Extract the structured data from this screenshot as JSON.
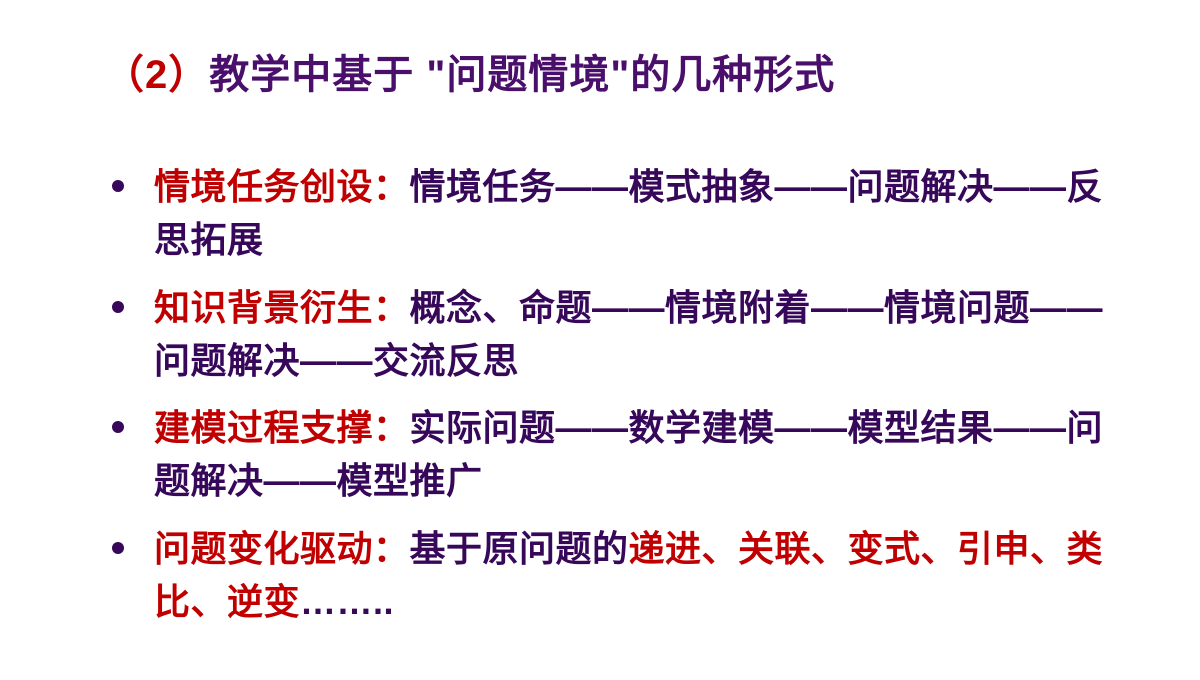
{
  "title": {
    "paren": "（2）",
    "rest": "教学中基于 \"问题情境\"的几种形式"
  },
  "items": [
    {
      "label": "情境任务创设：",
      "body": "情境任务——模式抽象——问题解决——反思拓展"
    },
    {
      "label": "知识背景衍生：",
      "body": "概念、命题——情境附着——情境问题——问题解决——交流反思"
    },
    {
      "label": "建模过程支撑：",
      "body": "实际问题——数学建模——模型结果——问题解决——模型推广"
    },
    {
      "label": "问题变化驱动：",
      "prefix": "基于原问题的",
      "mid": "递进、关联、变式、引申、类比、逆变",
      "tail": "…….."
    }
  ],
  "colors": {
    "label": "#c00000",
    "body": "#37085a",
    "titleParen": "#c00000",
    "titleRest": "#4a0e6b",
    "bullet": "#37085a",
    "background": "#ffffff"
  },
  "fontsize": {
    "title": 40,
    "body": 36
  }
}
